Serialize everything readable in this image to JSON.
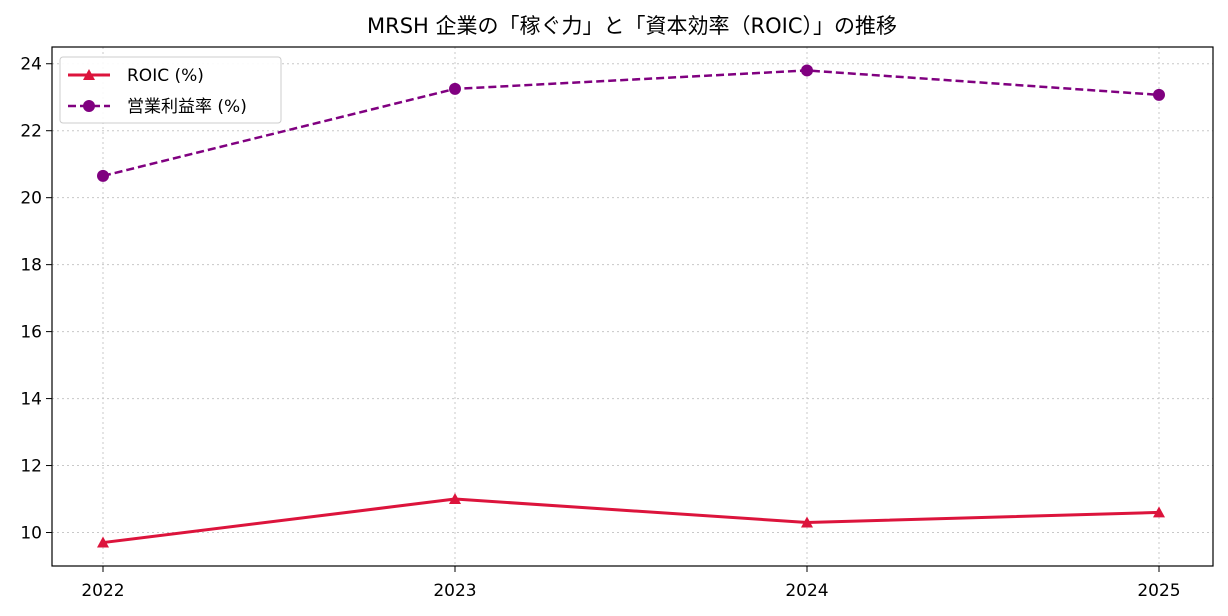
{
  "chart_data": {
    "type": "line",
    "title": "MRSH 企業の「稼ぐ力」と「資本効率（ROIC）」の推移",
    "xlabel": "",
    "ylabel": "",
    "categories": [
      "2022",
      "2023",
      "2024",
      "2025"
    ],
    "ylim": [
      9,
      24.5
    ],
    "yticks": [
      10,
      12,
      14,
      16,
      18,
      20,
      22,
      24
    ],
    "grid": true,
    "grid_style": "dotted",
    "legend_position": "top-left",
    "series": [
      {
        "name": "ROIC (%)",
        "values": [
          9.7,
          11.0,
          10.3,
          10.6
        ],
        "color": "#dc143c",
        "line_style": "solid",
        "marker": "triangle"
      },
      {
        "name": "営業利益率 (%)",
        "values": [
          20.65,
          23.25,
          23.8,
          23.07
        ],
        "color": "#800080",
        "line_style": "dashed",
        "marker": "circle"
      }
    ]
  }
}
